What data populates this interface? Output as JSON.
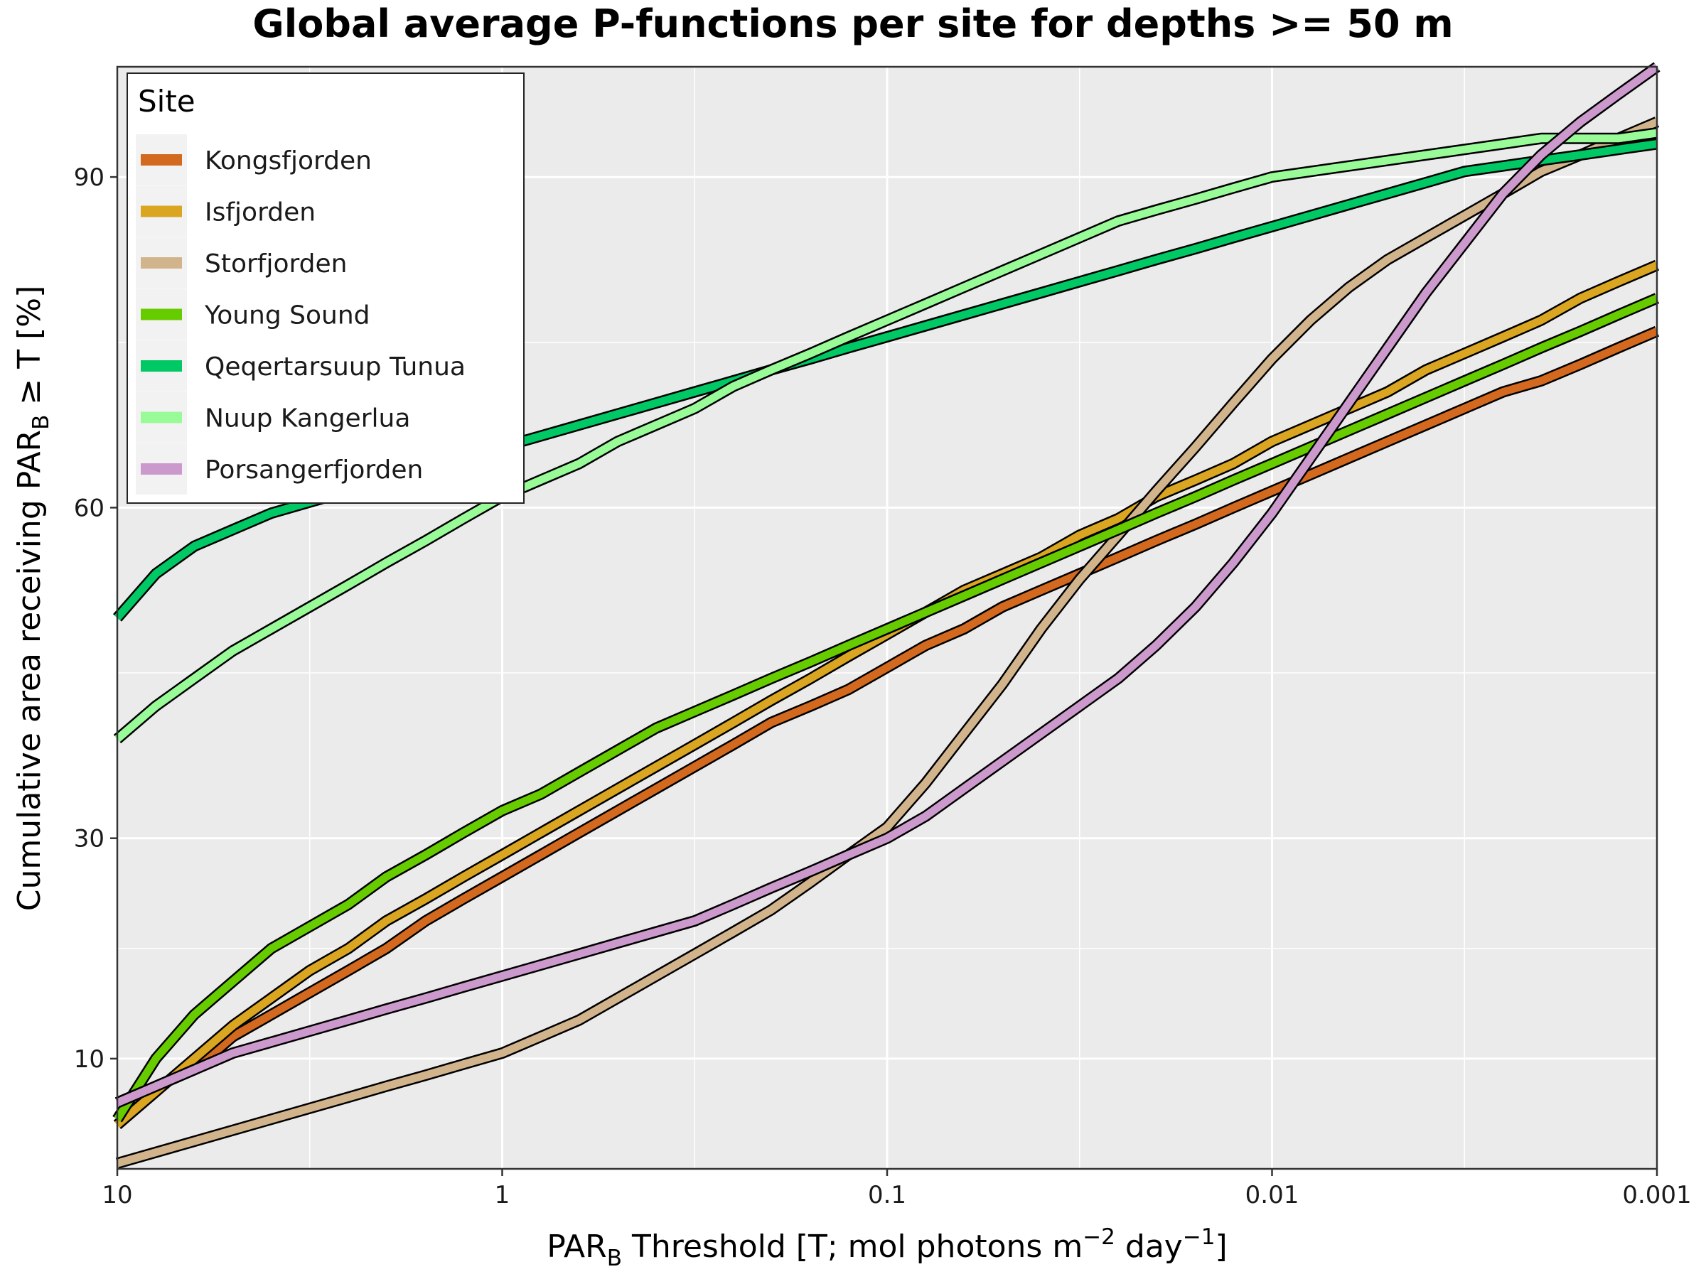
{
  "chart_data": {
    "type": "line",
    "title": "Global average P-functions per site for depths >= 50 m",
    "xlabel": {
      "main": "PAR",
      "sub": "B",
      "rest_1": " Threshold [T; mol photons m",
      "sup_1": "−2",
      "rest_2": " day",
      "sup_2": "−1",
      "rest_3": "]"
    },
    "ylabel": {
      "main": "Cumulative area receiving PAR",
      "sub": "B",
      "rest": " ≥ T [%]"
    },
    "x_scale": "log10, reversed",
    "xlim": [
      10,
      0.001
    ],
    "ylim": [
      0,
      100
    ],
    "x_ticks": [
      10,
      1,
      0.1,
      0.01,
      0.001
    ],
    "x_tick_labels": [
      "10",
      "1",
      "0.1",
      "0.01",
      "0.001"
    ],
    "y_ticks": [
      10,
      30,
      60,
      90
    ],
    "y_tick_labels": [
      "10",
      "30",
      "60",
      "90"
    ],
    "y_minor_ticks": [
      20,
      45,
      75
    ],
    "grid": true,
    "legend": {
      "title": "Site",
      "position": "top-left"
    },
    "panel_background": "#ebebeb",
    "x": [
      10,
      7.94,
      6.31,
      5.01,
      3.98,
      3.16,
      2.51,
      2.0,
      1.58,
      1.26,
      1.0,
      0.794,
      0.631,
      0.501,
      0.398,
      0.316,
      0.251,
      0.2,
      0.158,
      0.126,
      0.1,
      0.0794,
      0.0631,
      0.0501,
      0.0398,
      0.0316,
      0.0251,
      0.02,
      0.0158,
      0.0126,
      0.01,
      0.00794,
      0.00631,
      0.00501,
      0.00398,
      0.00316,
      0.00251,
      0.002,
      0.00158,
      0.00126,
      0.001
    ],
    "series": [
      {
        "name": "Kongsfjorden",
        "color": "#d2691e",
        "values": [
          6,
          7.5,
          9,
          12,
          14,
          16,
          18,
          20,
          22.5,
          24.5,
          26.5,
          28.5,
          30.5,
          32.5,
          34.5,
          36.5,
          38.5,
          40.5,
          42,
          43.5,
          45.5,
          47.5,
          49,
          51,
          52.5,
          54,
          55.5,
          57,
          58.5,
          60,
          61.5,
          63,
          64.5,
          66,
          67.5,
          69,
          70.5,
          71.5,
          73,
          74.5,
          76
        ]
      },
      {
        "name": "Isfjorden",
        "color": "#daa520",
        "values": [
          4,
          7,
          10,
          13,
          15.5,
          18,
          20,
          22.5,
          24.5,
          26.5,
          28.5,
          30.5,
          32.5,
          34.5,
          36.5,
          38.5,
          40.5,
          42.5,
          44.5,
          46.5,
          48.5,
          50.5,
          52.5,
          54,
          55.5,
          57.5,
          59,
          61,
          62.5,
          64,
          66,
          67.5,
          69,
          70.5,
          72.5,
          74,
          75.5,
          77,
          79,
          80.5,
          82
        ]
      },
      {
        "name": "Storfjorden",
        "color": "#d2b48c",
        "values": [
          0.5,
          1.5,
          2.5,
          3.5,
          4.5,
          5.5,
          6.5,
          7.5,
          8.5,
          9.5,
          10.5,
          12,
          13.5,
          15.5,
          17.5,
          19.5,
          21.5,
          23.5,
          26,
          28.5,
          31,
          35,
          39.5,
          44,
          49,
          53.5,
          57.5,
          61.5,
          65.5,
          69.5,
          73.5,
          77,
          80,
          82.5,
          84.5,
          86.5,
          88.5,
          90.5,
          92,
          93.5,
          95
        ]
      },
      {
        "name": "Young Sound",
        "color": "#66cc00",
        "values": [
          4.5,
          10,
          14,
          17,
          20,
          22,
          24,
          26.5,
          28.5,
          30.5,
          32.5,
          34,
          36,
          38,
          40,
          41.5,
          43,
          44.5,
          46,
          47.5,
          49,
          50.5,
          52,
          53.5,
          55,
          56.5,
          58,
          59.5,
          61,
          62.5,
          64,
          65.5,
          67,
          68.5,
          70,
          71.5,
          73,
          74.5,
          76,
          77.5,
          79
        ]
      },
      {
        "name": "Qeqertarsuup Tunua",
        "color": "#00c864",
        "values": [
          50,
          54,
          56.5,
          58,
          59.5,
          60.5,
          61.5,
          62.5,
          63.5,
          64.5,
          65.5,
          66.5,
          67.5,
          68.5,
          69.5,
          70.5,
          71.5,
          72.5,
          73.5,
          74.5,
          75.5,
          76.5,
          77.5,
          78.5,
          79.5,
          80.5,
          81.5,
          82.5,
          83.5,
          84.5,
          85.5,
          86.5,
          87.5,
          88.5,
          89.5,
          90.5,
          91,
          91.5,
          92,
          92.5,
          93
        ]
      },
      {
        "name": "Nuup Kangerlua",
        "color": "#98fb98",
        "values": [
          39,
          42,
          44.5,
          47,
          49,
          51,
          53,
          55,
          57,
          59,
          61,
          62.5,
          64,
          66,
          67.5,
          69,
          71,
          72.5,
          74,
          75.5,
          77,
          78.5,
          80,
          81.5,
          83,
          84.5,
          86,
          87,
          88,
          89,
          90,
          90.5,
          91,
          91.5,
          92,
          92.5,
          93,
          93.5,
          93.5,
          93.5,
          94
        ]
      },
      {
        "name": "Porsangerfjorden",
        "color": "#cc99cc",
        "values": [
          6,
          7.5,
          9,
          10.5,
          11.5,
          12.5,
          13.5,
          14.5,
          15.5,
          16.5,
          17.5,
          18.5,
          19.5,
          20.5,
          21.5,
          22.5,
          24,
          25.5,
          27,
          28.5,
          30,
          32,
          34.5,
          37,
          39.5,
          42,
          44.5,
          47.5,
          51,
          55,
          59.5,
          64.5,
          69.5,
          74.5,
          79.5,
          84,
          88.5,
          92,
          95,
          97.5,
          100
        ]
      }
    ]
  }
}
